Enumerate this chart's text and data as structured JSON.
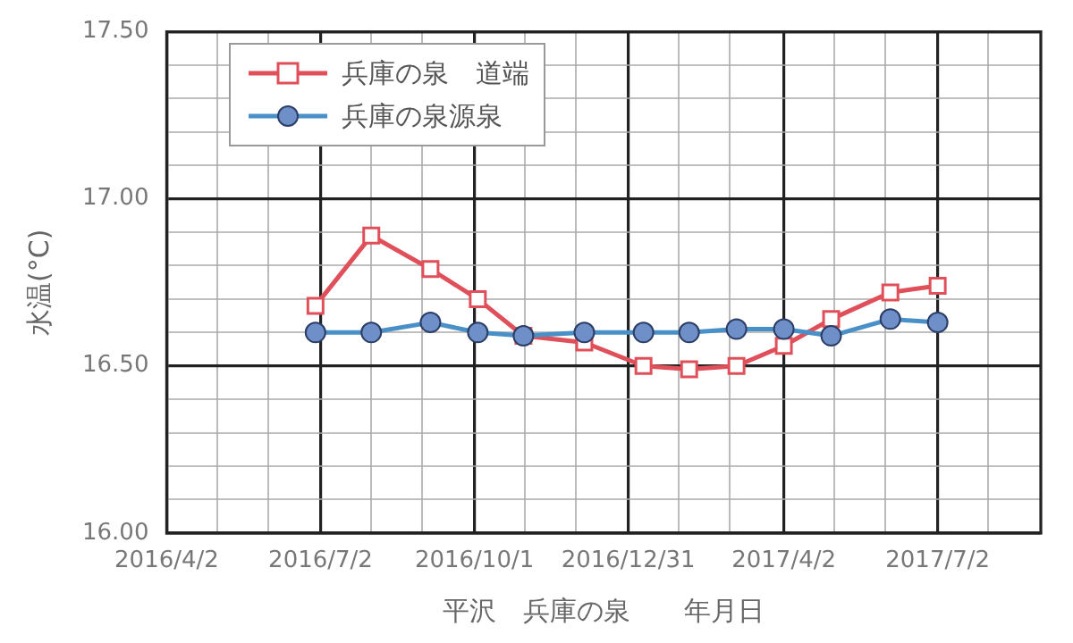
{
  "chart_data": {
    "type": "line",
    "xlabel": "平沢　兵庫の泉　　年月日",
    "ylabel": "水温(°C)",
    "x": [
      "2016-06-29",
      "2016-08-01",
      "2016-09-05",
      "2016-10-03",
      "2016-10-30",
      "2016-12-05",
      "2017-01-09",
      "2017-02-05",
      "2017-03-05",
      "2017-04-02",
      "2017-04-30",
      "2017-06-04",
      "2017-07-02"
    ],
    "series": [
      {
        "name": "兵庫の泉　道端",
        "color": "#e0505a",
        "marker": "square",
        "values": [
          16.68,
          16.89,
          16.79,
          16.7,
          16.59,
          16.57,
          16.5,
          16.49,
          16.5,
          16.56,
          16.64,
          16.72,
          16.74
        ]
      },
      {
        "name": "兵庫の泉源泉",
        "color": "#4a90c8",
        "marker": "circle",
        "values": [
          16.6,
          16.6,
          16.63,
          16.6,
          16.59,
          16.6,
          16.6,
          16.6,
          16.61,
          16.61,
          16.59,
          16.64,
          16.63
        ]
      }
    ],
    "xlim": [
      "2016-04-02",
      "2017-09-01"
    ],
    "xticks": [
      {
        "value": "2016-04-02",
        "label": "2016/4/2"
      },
      {
        "value": "2016-05-02",
        "label": null
      },
      {
        "value": "2016-06-01",
        "label": null
      },
      {
        "value": "2016-07-02",
        "label": "2016/7/2"
      },
      {
        "value": "2016-08-01",
        "label": null
      },
      {
        "value": "2016-08-31",
        "label": null
      },
      {
        "value": "2016-10-01",
        "label": "2016/10/1"
      },
      {
        "value": "2016-10-31",
        "label": null
      },
      {
        "value": "2016-11-30",
        "label": null
      },
      {
        "value": "2016-12-31",
        "label": "2016/12/31"
      },
      {
        "value": "2017-01-30",
        "label": null
      },
      {
        "value": "2017-03-01",
        "label": null
      },
      {
        "value": "2017-04-02",
        "label": "2017/4/2"
      },
      {
        "value": "2017-05-02",
        "label": null
      },
      {
        "value": "2017-06-01",
        "label": null
      },
      {
        "value": "2017-07-02",
        "label": "2017/7/2"
      },
      {
        "value": "2017-08-01",
        "label": null
      }
    ],
    "ylim": [
      16.0,
      17.5
    ],
    "yticks": [
      {
        "value": 16.0,
        "label": "16.00"
      },
      {
        "value": 16.1,
        "label": null
      },
      {
        "value": 16.2,
        "label": null
      },
      {
        "value": 16.3,
        "label": null
      },
      {
        "value": 16.4,
        "label": null
      },
      {
        "value": 16.5,
        "label": "16.50"
      },
      {
        "value": 16.6,
        "label": null
      },
      {
        "value": 16.7,
        "label": null
      },
      {
        "value": 16.8,
        "label": null
      },
      {
        "value": 16.9,
        "label": null
      },
      {
        "value": 17.0,
        "label": "17.00"
      },
      {
        "value": 17.1,
        "label": null
      },
      {
        "value": 17.2,
        "label": null
      },
      {
        "value": 17.3,
        "label": null
      },
      {
        "value": 17.4,
        "label": null
      },
      {
        "value": 17.5,
        "label": "17.50"
      }
    ],
    "grid": true,
    "legend": "top left",
    "line_style": "solid"
  }
}
